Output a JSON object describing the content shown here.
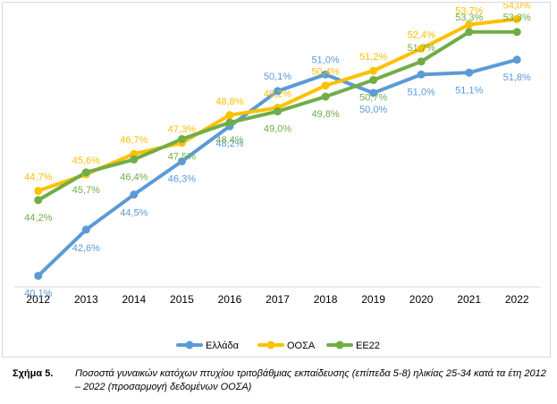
{
  "chart_data": {
    "type": "line",
    "title": "",
    "xlabel": "",
    "ylabel": "",
    "categories": [
      "2012",
      "2013",
      "2014",
      "2015",
      "2016",
      "2017",
      "2018",
      "2019",
      "2020",
      "2021",
      "2022"
    ],
    "ylim": [
      39.5,
      54.5
    ],
    "grid": false,
    "legend_position": "bottom",
    "series": [
      {
        "name": "Ελλάδα",
        "color": "#5B9BD5",
        "values": [
          40.1,
          42.6,
          44.5,
          46.3,
          48.2,
          50.1,
          51.0,
          50.0,
          51.0,
          51.1,
          51.8
        ],
        "labels": [
          "40,1%",
          "42,6%",
          "44,5%",
          "46,3%",
          "48,2%",
          "50,1%",
          "51,0%",
          "50,0%",
          "51,0%",
          "51,1%",
          "51,8%"
        ]
      },
      {
        "name": "ΟΟΣΑ",
        "color": "#FFC000",
        "values": [
          44.7,
          45.6,
          46.7,
          47.3,
          48.8,
          49.2,
          50.4,
          51.2,
          52.4,
          53.7,
          54.0
        ],
        "labels": [
          "44,7%",
          "45,6%",
          "46,7%",
          "47,3%",
          "48,8%",
          "49,2%",
          "50,4%",
          "51,2%",
          "52,4%",
          "53,7%",
          "54,0%"
        ]
      },
      {
        "name": "ΕΕ22",
        "color": "#70AD47",
        "values": [
          44.2,
          45.7,
          46.4,
          47.5,
          48.4,
          49.0,
          49.8,
          50.7,
          51.7,
          53.3,
          53.3
        ],
        "labels": [
          "44,2%",
          "45,7%",
          "46,4%",
          "47,5%",
          "48,4%",
          "49,0%",
          "49,8%",
          "50,7%",
          "51,7%",
          "53,3%",
          "53,3%"
        ]
      }
    ]
  },
  "caption": {
    "label": "Σχήμα 5.",
    "text": "Ποσοστά γυναικών κατόχων πτυχίου τριτοβάθμιας εκπαίδευσης (επίπεδα 5-8) ηλικίας 25-34 κατά τα έτη 2012 – 2022 (προσαρμογή δεδομένων ΟΟΣΑ)"
  }
}
